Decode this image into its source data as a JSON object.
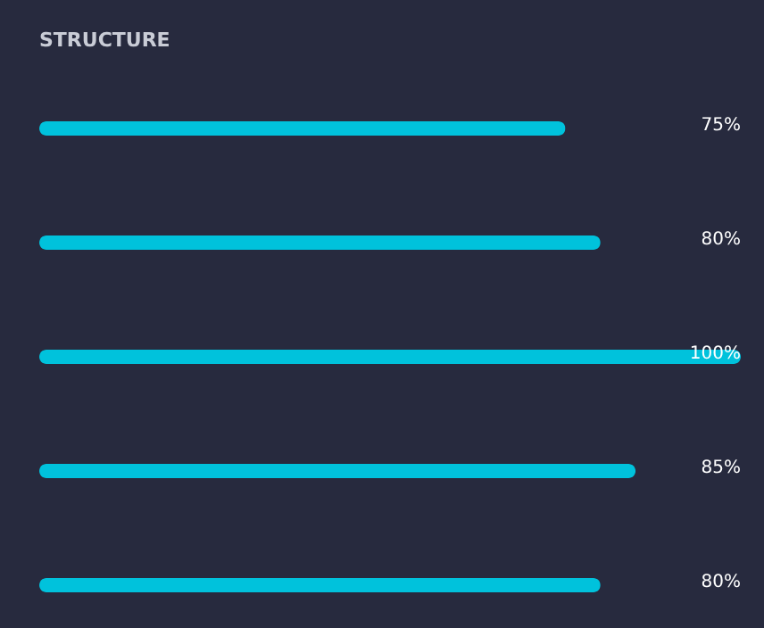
{
  "chart_data": {
    "type": "bar",
    "orientation": "horizontal",
    "title": "STRUCTURE",
    "categories": [
      null,
      null,
      null,
      null,
      null
    ],
    "values": [
      75,
      80,
      100,
      85,
      80
    ],
    "value_labels": [
      "75%",
      "80%",
      "100%",
      "85%",
      "80%"
    ],
    "color": "#00c2dc",
    "xlim": [
      0,
      100
    ]
  }
}
